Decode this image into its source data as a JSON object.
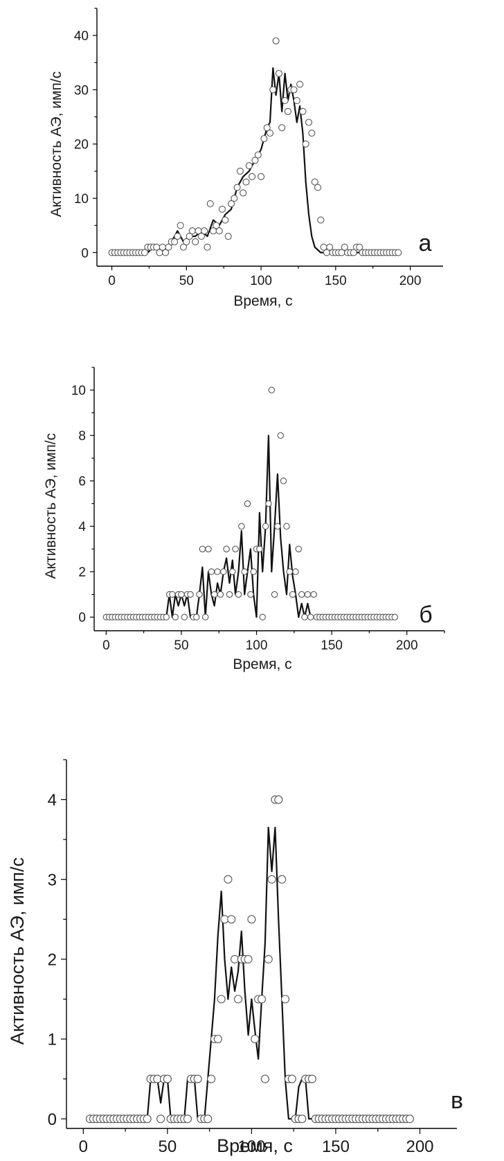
{
  "chart_data": [
    {
      "type": "scatter",
      "panel_letter": "а",
      "xlabel": "Время, с",
      "ylabel": "Активность АЭ, имп/с",
      "xlim": [
        -10,
        222
      ],
      "ylim": [
        -2.5,
        45
      ],
      "xticks": [
        0,
        50,
        100,
        150,
        200
      ],
      "yticks": [
        0,
        10,
        20,
        30,
        40
      ],
      "tick_labels_x": [
        "0",
        "50",
        "100",
        "150",
        "200"
      ],
      "tick_labels_y": [
        "0",
        "10",
        "20",
        "30",
        "40"
      ],
      "grid": false,
      "series": [
        {
          "style": "open-circles",
          "x": [
            0,
            2,
            4,
            6,
            8,
            10,
            12,
            14,
            16,
            18,
            20,
            22,
            24,
            26,
            28,
            30,
            32,
            34,
            36,
            38,
            40,
            42,
            44,
            46,
            48,
            50,
            52,
            54,
            56,
            58,
            60,
            62,
            64,
            66,
            68,
            70,
            72,
            74,
            76,
            78,
            80,
            82,
            84,
            86,
            88,
            90,
            92,
            94,
            96,
            98,
            100,
            102,
            104,
            106,
            108,
            110,
            112,
            114,
            116,
            118,
            120,
            122,
            124,
            126,
            128,
            130,
            132,
            134,
            136,
            138,
            140,
            142,
            144,
            146,
            148,
            150,
            152,
            154,
            156,
            158,
            160,
            162,
            164,
            166,
            168,
            170,
            172,
            174,
            176,
            178,
            180,
            182,
            184,
            186,
            188,
            190,
            192
          ],
          "y": [
            0,
            0,
            0,
            0,
            0,
            0,
            0,
            0,
            0,
            0,
            0,
            0,
            1,
            1,
            1,
            1,
            0,
            1,
            0,
            1,
            2,
            2,
            3,
            5,
            1,
            2,
            3,
            4,
            2,
            4,
            3,
            4,
            1,
            9,
            4,
            5,
            4,
            8,
            6,
            3,
            9,
            10,
            12,
            15,
            11,
            13,
            16,
            14,
            17,
            18,
            14,
            21,
            23,
            22,
            30,
            39,
            33,
            23,
            28,
            26,
            30,
            30,
            28,
            31,
            26,
            20,
            24,
            22,
            13,
            12,
            6,
            1,
            0,
            1,
            0,
            0,
            0,
            0,
            1,
            0,
            0,
            0,
            1,
            1,
            0,
            0,
            0,
            0,
            0,
            0,
            0,
            0,
            0,
            0,
            0,
            0,
            0
          ]
        },
        {
          "style": "line",
          "x": [
            0,
            20,
            24,
            28,
            32,
            36,
            40,
            44,
            48,
            52,
            56,
            60,
            64,
            68,
            72,
            76,
            80,
            84,
            88,
            92,
            96,
            100,
            102,
            104,
            106,
            108,
            110,
            112,
            114,
            116,
            118,
            120,
            122,
            124,
            126,
            128,
            130,
            132,
            134,
            136,
            138,
            140,
            142,
            144,
            150,
            160,
            170,
            180,
            192
          ],
          "y": [
            0,
            0,
            0,
            1,
            0,
            1,
            2,
            4,
            2,
            3,
            3,
            4,
            3,
            6,
            5,
            7,
            8,
            12,
            14,
            15,
            17,
            19,
            21,
            23,
            24,
            34,
            29,
            33,
            26,
            33,
            28,
            31,
            28,
            24,
            27,
            22,
            13,
            7,
            3,
            1,
            0.5,
            0,
            0,
            0,
            0,
            0,
            0,
            0,
            0
          ]
        }
      ]
    },
    {
      "type": "scatter",
      "panel_letter": "б",
      "xlabel": "Время, с",
      "ylabel": "Активность АЭ, имп/с",
      "xlim": [
        -8,
        225
      ],
      "ylim": [
        -0.6,
        11
      ],
      "xticks": [
        0,
        50,
        100,
        150,
        200
      ],
      "yticks": [
        0,
        2,
        4,
        6,
        8,
        10
      ],
      "tick_labels_x": [
        "0",
        "50",
        "100",
        "150",
        "200"
      ],
      "tick_labels_y": [
        "0",
        "2",
        "4",
        "6",
        "8",
        "10"
      ],
      "grid": false,
      "series": [
        {
          "style": "open-circles",
          "x": [
            0,
            2,
            4,
            6,
            8,
            10,
            12,
            14,
            16,
            18,
            20,
            22,
            24,
            26,
            28,
            30,
            32,
            34,
            36,
            38,
            40,
            42,
            44,
            46,
            48,
            50,
            52,
            54,
            56,
            58,
            60,
            62,
            64,
            66,
            68,
            70,
            72,
            74,
            76,
            78,
            80,
            82,
            84,
            86,
            88,
            90,
            92,
            94,
            96,
            98,
            100,
            102,
            104,
            106,
            108,
            110,
            112,
            114,
            116,
            118,
            120,
            122,
            124,
            126,
            128,
            130,
            132,
            134,
            136,
            138,
            140,
            142,
            144,
            146,
            148,
            150,
            152,
            154,
            156,
            158,
            160,
            162,
            164,
            166,
            168,
            170,
            172,
            174,
            176,
            178,
            180,
            182,
            184,
            186,
            188,
            190,
            192
          ],
          "y": [
            0,
            0,
            0,
            0,
            0,
            0,
            0,
            0,
            0,
            0,
            0,
            0,
            0,
            0,
            0,
            0,
            0,
            0,
            0,
            0,
            0,
            1,
            1,
            0,
            1,
            1,
            0,
            1,
            1,
            0,
            0,
            1,
            3,
            0,
            3,
            2,
            1,
            2,
            1,
            2,
            3,
            1,
            2,
            3,
            1,
            4,
            2,
            5,
            1,
            2,
            3,
            3,
            0,
            4,
            5,
            10,
            1,
            4,
            8,
            6,
            4,
            2,
            1,
            2,
            3,
            1,
            0,
            1,
            0,
            1,
            0,
            0,
            0,
            0,
            0,
            0,
            0,
            0,
            0,
            0,
            0,
            0,
            0,
            0,
            0,
            0,
            0,
            0,
            0,
            0,
            0,
            0,
            0,
            0,
            0,
            0,
            0
          ]
        },
        {
          "style": "line",
          "x": [
            0,
            40,
            42,
            44,
            46,
            48,
            50,
            52,
            54,
            56,
            58,
            60,
            62,
            64,
            66,
            68,
            70,
            72,
            74,
            76,
            78,
            80,
            82,
            84,
            86,
            88,
            90,
            92,
            94,
            96,
            98,
            100,
            102,
            104,
            106,
            108,
            110,
            112,
            114,
            116,
            118,
            120,
            122,
            124,
            126,
            128,
            130,
            132,
            134,
            136,
            138,
            140,
            150,
            160,
            170,
            180,
            192
          ],
          "y": [
            0,
            0,
            1,
            0,
            1,
            0.5,
            1,
            0.5,
            1,
            0,
            0,
            0,
            1,
            2.2,
            0,
            2,
            1,
            0.5,
            1.5,
            1,
            2,
            2.6,
            1.5,
            2.5,
            1,
            2,
            3.8,
            1,
            2,
            3,
            1,
            0,
            4.6,
            2,
            4,
            8,
            2,
            4,
            6.3,
            3.5,
            2,
            1,
            3.2,
            1.8,
            1,
            0,
            0.6,
            0,
            0.6,
            0,
            0,
            0,
            0,
            0,
            0,
            0,
            0
          ]
        }
      ]
    },
    {
      "type": "scatter",
      "panel_letter": "в",
      "xlabel": "Время, с",
      "ylabel": "Активность АЭ, имп/с",
      "xlim": [
        -10,
        222
      ],
      "ylim": [
        -0.12,
        4.5
      ],
      "xticks": [
        0,
        50,
        100,
        150,
        200
      ],
      "yticks": [
        0,
        1,
        2,
        3,
        4
      ],
      "tick_labels_x": [
        "0",
        "50",
        "100",
        "150",
        "200"
      ],
      "tick_labels_y": [
        "0",
        "1",
        "2",
        "3",
        "4"
      ],
      "grid": false,
      "series": [
        {
          "style": "open-circles",
          "x": [
            4,
            6,
            8,
            10,
            12,
            14,
            16,
            18,
            20,
            22,
            24,
            26,
            28,
            30,
            32,
            34,
            36,
            38,
            40,
            42,
            44,
            46,
            48,
            50,
            52,
            54,
            56,
            58,
            60,
            62,
            64,
            66,
            68,
            70,
            72,
            74,
            76,
            78,
            80,
            82,
            84,
            86,
            88,
            90,
            92,
            94,
            96,
            98,
            100,
            102,
            104,
            106,
            108,
            110,
            112,
            114,
            116,
            118,
            120,
            122,
            124,
            126,
            128,
            130,
            132,
            134,
            136,
            138,
            140,
            142,
            144,
            146,
            148,
            150,
            152,
            154,
            156,
            158,
            160,
            162,
            164,
            166,
            168,
            170,
            172,
            174,
            176,
            178,
            180,
            182,
            184,
            186,
            188,
            190,
            192,
            194
          ],
          "y": [
            0,
            0,
            0,
            0,
            0,
            0,
            0,
            0,
            0,
            0,
            0,
            0,
            0,
            0,
            0,
            0,
            0,
            0,
            0.5,
            0.5,
            0.5,
            0,
            0.5,
            0.5,
            0,
            0,
            0,
            0,
            0,
            0,
            0.5,
            0.5,
            0.5,
            0,
            0,
            0,
            0.5,
            1,
            1,
            1.5,
            2.5,
            3,
            2.5,
            2,
            1.5,
            2,
            2,
            2,
            2.5,
            1,
            1.5,
            1.5,
            0.5,
            2,
            3,
            4,
            4,
            3,
            1.5,
            0.5,
            0.5,
            0,
            0,
            0,
            0.5,
            0.5,
            0.5,
            0,
            0,
            0,
            0,
            0,
            0,
            0,
            0,
            0,
            0,
            0,
            0,
            0,
            0,
            0,
            0,
            0,
            0,
            0,
            0,
            0,
            0,
            0,
            0,
            0,
            0,
            0,
            0,
            0
          ]
        },
        {
          "style": "line",
          "x": [
            4,
            38,
            40,
            42,
            44,
            46,
            48,
            50,
            52,
            56,
            60,
            62,
            64,
            66,
            68,
            70,
            72,
            74,
            76,
            78,
            80,
            82,
            84,
            86,
            88,
            90,
            92,
            94,
            96,
            98,
            100,
            102,
            104,
            106,
            108,
            110,
            112,
            114,
            116,
            118,
            120,
            122,
            124,
            126,
            128,
            130,
            132,
            134,
            136,
            138,
            150,
            170,
            194
          ],
          "y": [
            0,
            0,
            0.5,
            0.5,
            0.5,
            0.2,
            0.5,
            0.5,
            0,
            0,
            0,
            0.5,
            0.5,
            0.5,
            0,
            0,
            0,
            0.5,
            1,
            1.5,
            2.3,
            2.85,
            2,
            1.5,
            1.9,
            1.6,
            1.85,
            2.35,
            1.6,
            1.05,
            1.5,
            1.1,
            0.75,
            1.5,
            2.2,
            3.65,
            3.1,
            3.65,
            2.5,
            1.5,
            0.5,
            0,
            0,
            0,
            0.4,
            0.5,
            0.5,
            0,
            0,
            0,
            0,
            0,
            0
          ]
        }
      ]
    }
  ]
}
